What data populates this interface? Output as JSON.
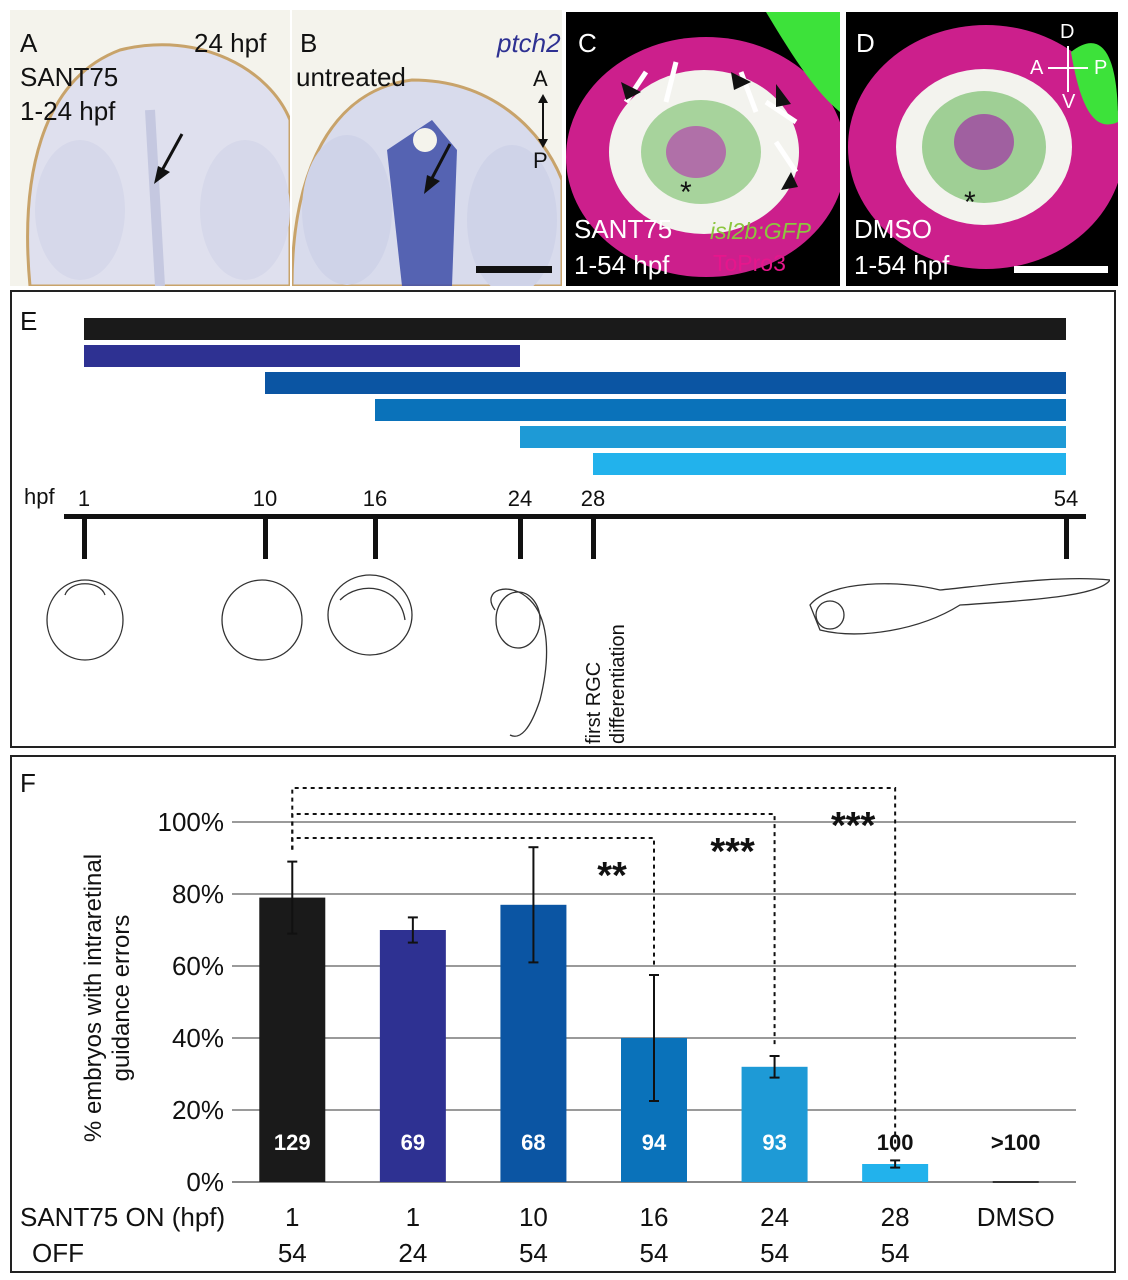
{
  "panels": {
    "A": {
      "letter": "A",
      "line1": "SANT75",
      "line2": "1-24 hpf",
      "stage": "24 hpf"
    },
    "B": {
      "letter": "B",
      "line1": "untreated",
      "gene": "ptch2",
      "axis_top": "A",
      "axis_bottom": "P"
    },
    "C": {
      "letter": "C",
      "line1": "SANT75",
      "line2": "1-54 hpf",
      "marker1": "isl2b:GFP",
      "marker2": "ToPro3"
    },
    "D": {
      "letter": "D",
      "line1": "DMSO",
      "line2": "1-54 hpf",
      "axis_D": "D",
      "axis_V": "V",
      "axis_A": "A",
      "axis_P": "P"
    },
    "E": {
      "letter": "E",
      "hpf_label": "hpf",
      "annotation": "first RGC differentiation"
    },
    "F": {
      "letter": "F"
    }
  },
  "colors": {
    "black": "#1a1a1a",
    "navy": "#2e3192",
    "blue1": "#0b55a3",
    "blue2": "#0a72ba",
    "blue3": "#1e9ad6",
    "blue4": "#22b2ec",
    "magenta": "#e0209a",
    "green": "#3de23a"
  },
  "timeline": {
    "ticks": [
      1,
      10,
      16,
      24,
      28,
      54
    ],
    "bars": [
      {
        "start": 1,
        "end": 54,
        "color": "#1a1a1a"
      },
      {
        "start": 1,
        "end": 24,
        "color": "#2e3192"
      },
      {
        "start": 10,
        "end": 54,
        "color": "#0b55a3"
      },
      {
        "start": 16,
        "end": 54,
        "color": "#0a72ba"
      },
      {
        "start": 24,
        "end": 54,
        "color": "#1e9ad6"
      },
      {
        "start": 28,
        "end": 54,
        "color": "#22b2ec"
      }
    ]
  },
  "chart_data": {
    "type": "bar",
    "ylabel": "% embryos with intraretinal guidance errors",
    "ylim": [
      0,
      100
    ],
    "yticks": [
      "0%",
      "20%",
      "40%",
      "60%",
      "80%",
      "100%"
    ],
    "grid": true,
    "row1_label": "SANT75 ON (hpf)",
    "row2_label": "OFF",
    "categories_on": [
      "1",
      "1",
      "10",
      "16",
      "24",
      "28",
      "DMSO"
    ],
    "categories_off": [
      "54",
      "24",
      "54",
      "54",
      "54",
      "54",
      ""
    ],
    "values": [
      79,
      70,
      77,
      40,
      32,
      5,
      0
    ],
    "errors": [
      10,
      3.5,
      16,
      17.5,
      3,
      1,
      0
    ],
    "n_labels": [
      "129",
      "69",
      "68",
      "94",
      "93",
      "100",
      ">100"
    ],
    "colors": [
      "#1a1a1a",
      "#2e3192",
      "#0b55a3",
      "#0a72ba",
      "#1e9ad6",
      "#22b2ec",
      "#ffffff"
    ],
    "significance": [
      {
        "from": 0,
        "to": 3,
        "label": "**"
      },
      {
        "from": 0,
        "to": 4,
        "label": "***"
      },
      {
        "from": 0,
        "to": 5,
        "label": "***"
      }
    ]
  }
}
